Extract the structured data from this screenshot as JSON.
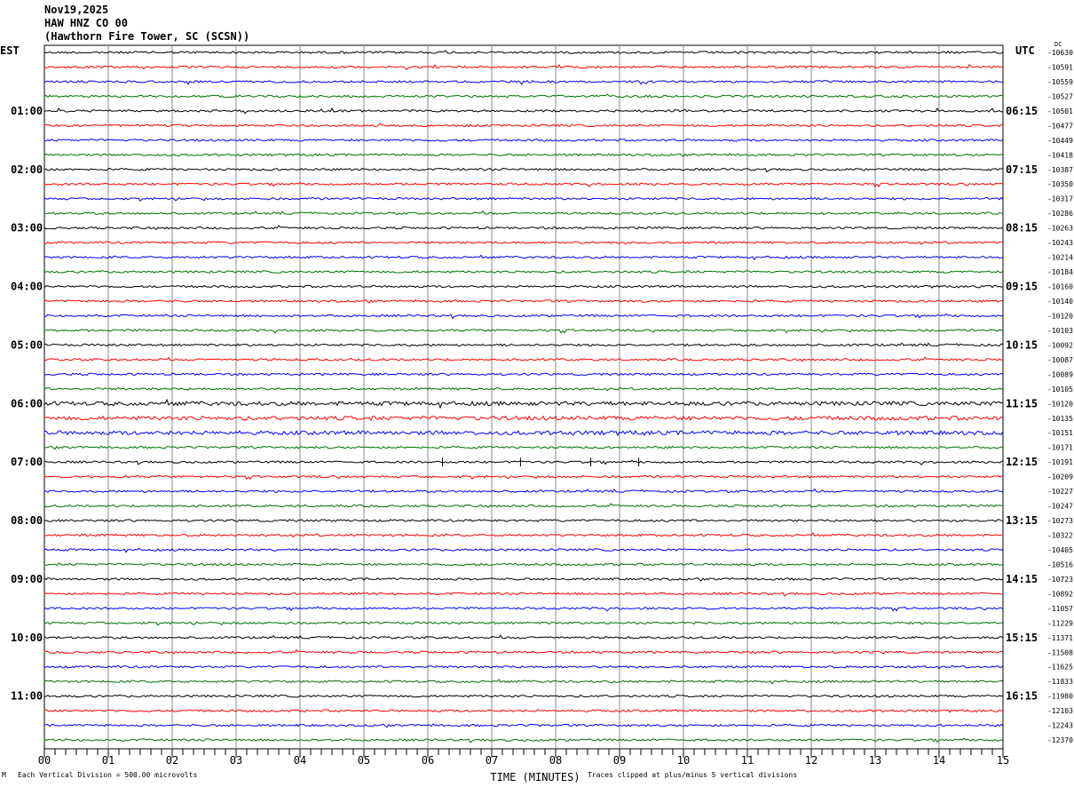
{
  "header": {
    "date": "Nov19,2025",
    "channel": "HAW HNZ CO 00",
    "station": "(Hawthorn Fire Tower, SC (SCSN))"
  },
  "footer": {
    "scale": "Each Vertical Division =  500.00 microvolts",
    "clip_note": "Traces clipped at plus/minus 5 vertical divisions",
    "corner_mark": "M"
  },
  "chart_data": {
    "type": "line",
    "subtype": "helicorder",
    "xlabel": "TIME (MINUTES)",
    "xlim": [
      0,
      15
    ],
    "x_ticks": [
      "00",
      "01",
      "02",
      "03",
      "04",
      "05",
      "06",
      "07",
      "08",
      "09",
      "10",
      "11",
      "12",
      "13",
      "14",
      "15"
    ],
    "left_axis_title": "EST",
    "right_axis_title": "UTC",
    "dc_title": "DC",
    "left_hour_labels": [
      "01:00",
      "02:00",
      "03:00",
      "04:00",
      "05:00",
      "06:00",
      "07:00",
      "08:00",
      "09:00",
      "10:00",
      "11:00"
    ],
    "right_hour_labels": [
      "06:15",
      "07:15",
      "08:15",
      "09:15",
      "10:15",
      "11:15",
      "12:15",
      "13:15",
      "14:15",
      "15:15",
      "16:15"
    ],
    "trace_colors": [
      "#000000",
      "#ff0000",
      "#0000ff",
      "#007000"
    ],
    "dc_offsets": [
      "-10630",
      "-10591",
      "-10559",
      "-10527",
      "-10501",
      "-10477",
      "-10449",
      "-10418",
      "-10387",
      "-10350",
      "-10317",
      "-10286",
      "-10263",
      "-10243",
      "-10214",
      "-10184",
      "-10160",
      "-10140",
      "-10120",
      "-10103",
      "-10092",
      "-10087",
      "-10089",
      "-10105",
      "-10120",
      "-10135",
      "-10151",
      "-10171",
      "-10191",
      "-10209",
      "-10227",
      "-10247",
      "-10273",
      "-10322",
      "-10405",
      "-10516",
      "-10723",
      "-10892",
      "-11057",
      "-11229",
      "-11371",
      "-11508",
      "-11625",
      "-11833",
      "-11980",
      "-12103",
      "-12243",
      "-12370"
    ],
    "grid": true
  }
}
